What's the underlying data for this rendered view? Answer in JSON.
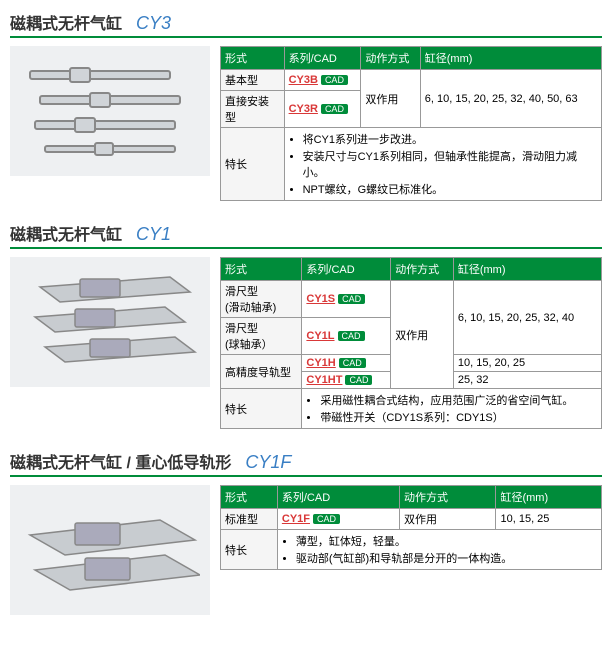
{
  "colors": {
    "accent": "#008c3a",
    "link": "#d93838",
    "model": "#3a7fc4"
  },
  "sections": [
    {
      "title": "磁耦式无杆气缸",
      "model": "CY3",
      "headers": [
        "形式",
        "系列/CAD",
        "动作方式",
        "缸径(mm)"
      ],
      "rows": [
        {
          "form": "基本型",
          "series": "CY3B",
          "action": "双作用",
          "bore": "6, 10, 15, 20, 25, 32, 40, 50, 63",
          "span": 2
        },
        {
          "form": "直接安装型",
          "series": "CY3R"
        }
      ],
      "feat_label": "特长",
      "feats": [
        "将CY1系列进一步改进。",
        "安装尺寸与CY1系列相同，但轴承性能提高，滑动阻力减小。",
        "NPT螺纹，G螺纹已标准化。"
      ]
    },
    {
      "title": "磁耦式无杆气缸",
      "model": "CY1",
      "headers": [
        "形式",
        "系列/CAD",
        "动作方式",
        "缸径(mm)"
      ],
      "rows": [
        {
          "form": "滑尺型\n(滑动轴承)",
          "series": "CY1S",
          "action": "双作用",
          "bore": "6, 10, 15, 20, 25, 32, 40",
          "aspan": 4,
          "bspan": 2
        },
        {
          "form": "滑尺型\n(球轴承）",
          "series": "CY1L"
        },
        {
          "form": "高精度导轨型",
          "series": "CY1H",
          "bore": "10, 15, 20, 25",
          "fspan": 2
        },
        {
          "series": "CY1HT",
          "bore": "25, 32"
        }
      ],
      "feat_label": "特长",
      "feats": [
        "采用磁性耦合式结构，应用范围广泛的省空间气缸。",
        "带磁性开关（CDY1S系列：CDY1S）"
      ]
    },
    {
      "title": "磁耦式无杆气缸",
      "subtitle": "/ 重心低导轨形",
      "model": "CY1F",
      "headers": [
        "形式",
        "系列/CAD",
        "动作方式",
        "缸径(mm)"
      ],
      "rows": [
        {
          "form": "标准型",
          "series": "CY1F",
          "action": "双作用",
          "bore": "10, 15, 25"
        }
      ],
      "feat_label": "特长",
      "feats": [
        "薄型，缸体短，轻量。",
        "驱动部(气缸部)和导轨部是分开的一体构造。"
      ]
    }
  ]
}
